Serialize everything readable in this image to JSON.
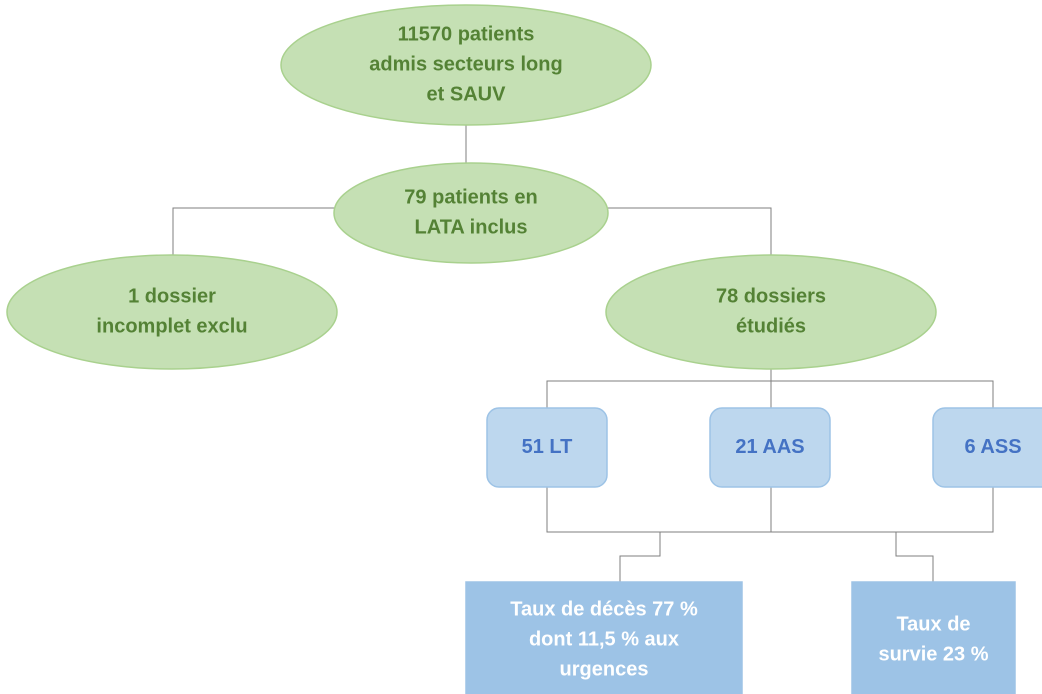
{
  "nodes": [
    {
      "lines": [
        "11570 patients",
        "admis secteurs long",
        "et SAUV"
      ]
    },
    {
      "lines": [
        "79 patients en",
        "LATA inclus"
      ]
    },
    {
      "lines": [
        "1 dossier",
        "incomplet exclu"
      ]
    },
    {
      "lines": [
        "78 dossiers",
        "étudiés"
      ]
    },
    {
      "lines": [
        "51 LT"
      ]
    },
    {
      "lines": [
        "21 AAS"
      ]
    },
    {
      "lines": [
        "6 ASS"
      ]
    },
    {
      "lines": [
        "Taux de décès 77 %",
        "dont 11,5 % aux",
        "urgences"
      ]
    },
    {
      "lines": [
        "Taux de",
        "survie 23 %"
      ]
    }
  ]
}
